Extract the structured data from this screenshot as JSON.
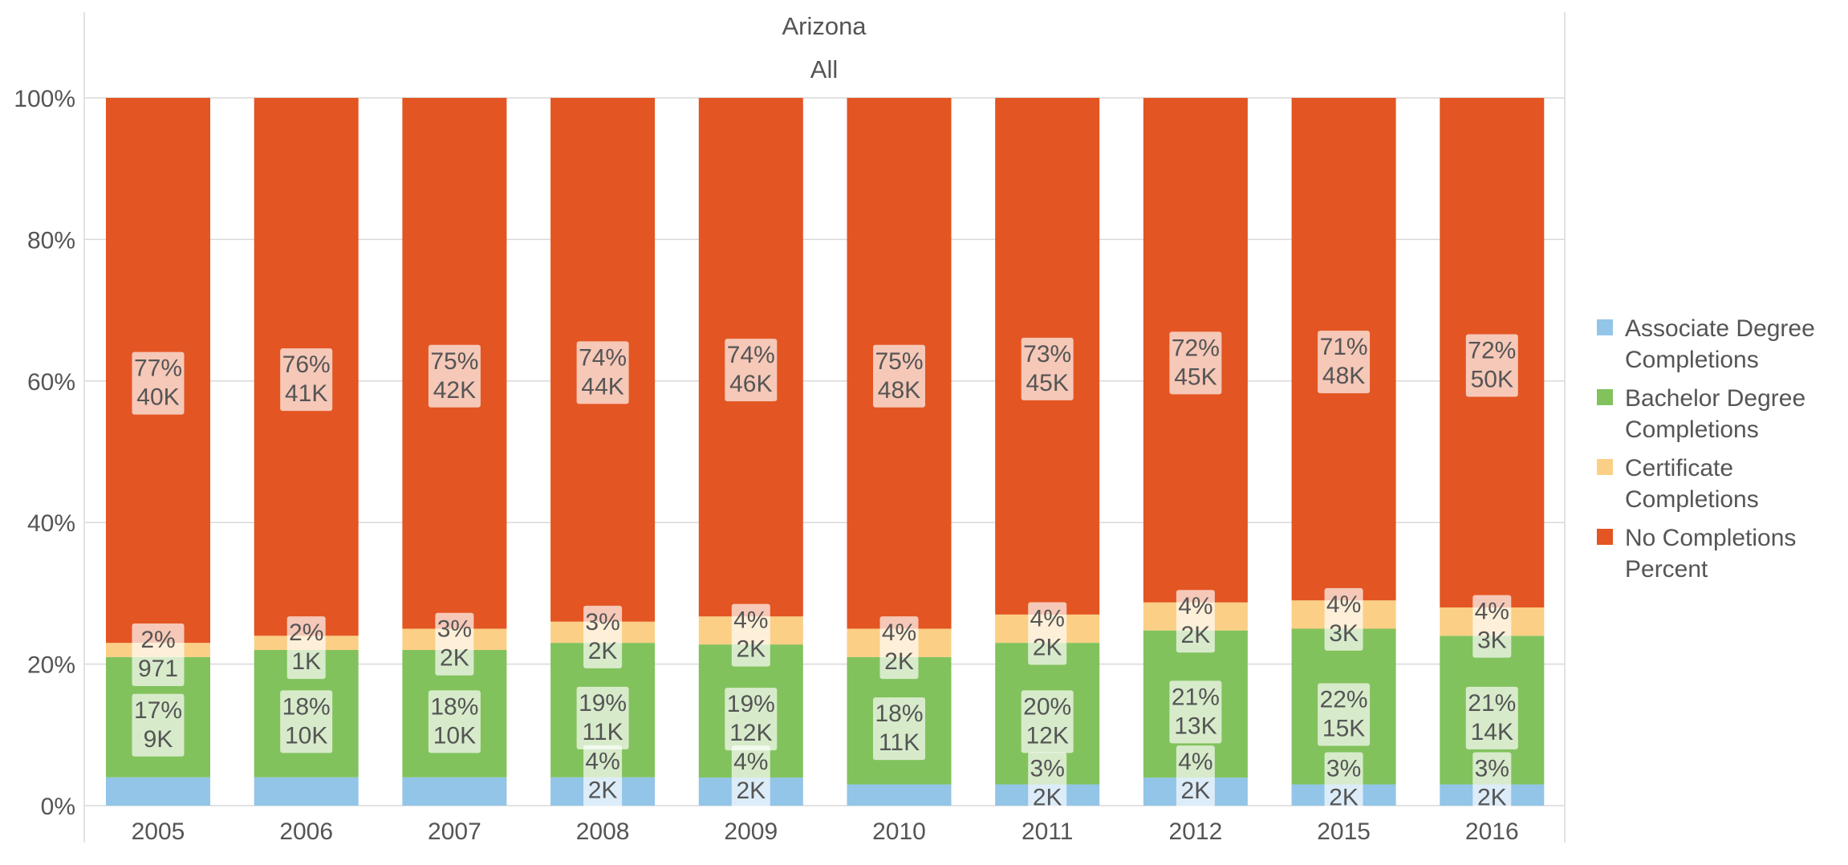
{
  "chart_data": {
    "type": "bar",
    "stacked": true,
    "normalized": true,
    "title": "Arizona",
    "subtitle": "All",
    "categories": [
      "2005",
      "2006",
      "2007",
      "2008",
      "2009",
      "2010",
      "2011",
      "2012",
      "2015",
      "2016"
    ],
    "y_ticks": [
      "0%",
      "20%",
      "40%",
      "60%",
      "80%",
      "100%"
    ],
    "ylim": [
      0,
      100
    ],
    "grid": true,
    "legend_position": "right",
    "series": [
      {
        "name": "Associate Degree Completions",
        "color": "#92c5e8",
        "values": [
          4,
          4,
          4,
          4,
          4,
          3,
          3,
          4,
          3,
          3
        ],
        "pct_labels": [
          "",
          "",
          "",
          "4%",
          "4%",
          "",
          "3%",
          "4%",
          "3%",
          "3%"
        ],
        "count_labels": [
          "",
          "",
          "",
          "2K",
          "2K",
          "",
          "2K",
          "2K",
          "2K",
          "2K"
        ]
      },
      {
        "name": "Bachelor Degree Completions",
        "color": "#82c25d",
        "values": [
          17,
          18,
          18,
          19,
          19,
          18,
          20,
          21,
          22,
          21
        ],
        "pct_labels": [
          "17%",
          "18%",
          "18%",
          "19%",
          "19%",
          "18%",
          "20%",
          "21%",
          "22%",
          "21%"
        ],
        "count_labels": [
          "9K",
          "10K",
          "10K",
          "11K",
          "12K",
          "11K",
          "12K",
          "13K",
          "15K",
          "14K"
        ]
      },
      {
        "name": "Certificate Completions",
        "color": "#fbcf85",
        "values": [
          2,
          2,
          3,
          3,
          4,
          4,
          4,
          4,
          4,
          4
        ],
        "pct_labels": [
          "2%",
          "2%",
          "3%",
          "3%",
          "4%",
          "4%",
          "4%",
          "4%",
          "4%",
          "4%"
        ],
        "count_labels": [
          "971",
          "1K",
          "2K",
          "2K",
          "2K",
          "2K",
          "2K",
          "2K",
          "3K",
          "3K"
        ]
      },
      {
        "name": "No Completions Percent",
        "color": "#e35522",
        "values": [
          77,
          76,
          75,
          74,
          74,
          75,
          73,
          72,
          71,
          72
        ],
        "pct_labels": [
          "77%",
          "76%",
          "75%",
          "74%",
          "74%",
          "75%",
          "73%",
          "72%",
          "71%",
          "72%"
        ],
        "count_labels": [
          "40K",
          "41K",
          "42K",
          "44K",
          "46K",
          "48K",
          "45K",
          "45K",
          "48K",
          "50K"
        ]
      }
    ],
    "legend": [
      {
        "line1": "Associate Degree",
        "line2": "Completions"
      },
      {
        "line1": "Bachelor Degree",
        "line2": "Completions"
      },
      {
        "line1": "Certificate",
        "line2": "Completions"
      },
      {
        "line1": "No Completions",
        "line2": "Percent"
      }
    ]
  }
}
